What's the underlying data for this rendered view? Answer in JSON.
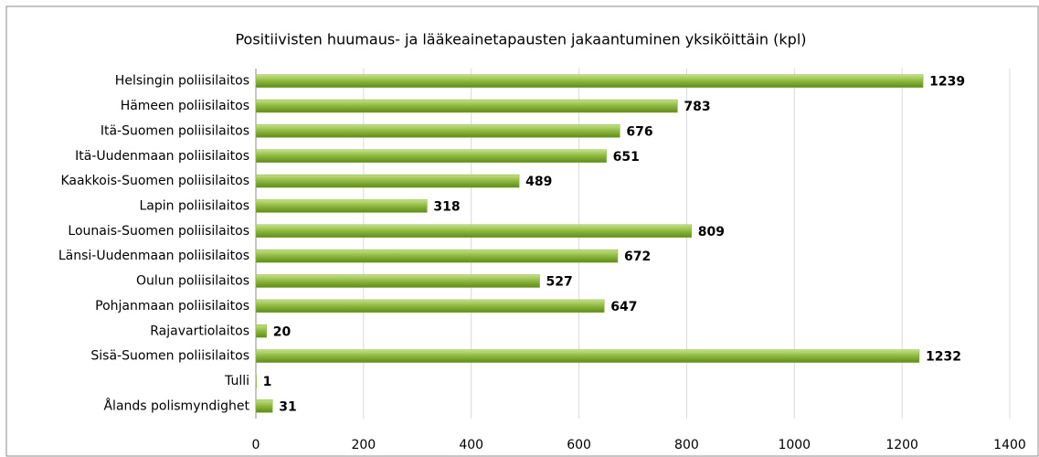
{
  "chart_data": {
    "type": "barh",
    "title": "Positiivisten huumaus- ja lääkeainetapausten jakaantuminen yksiköittäin (kpl)",
    "categories": [
      "Helsingin poliisilaitos",
      "Hämeen poliisilaitos",
      "Itä-Suomen poliisilaitos",
      "Itä-Uudenmaan poliisilaitos",
      "Kaakkois-Suomen poliisilaitos",
      "Lapin poliisilaitos",
      "Lounais-Suomen poliisilaitos",
      "Länsi-Uudenmaan poliisilaitos",
      "Oulun poliisilaitos",
      "Pohjanmaan poliisilaitos",
      "Rajavartiolaitos",
      "Sisä-Suomen poliisilaitos",
      "Tulli",
      "Ålands polismyndighet"
    ],
    "values": [
      1239,
      783,
      676,
      651,
      489,
      318,
      809,
      672,
      527,
      647,
      20,
      1232,
      1,
      31
    ],
    "color": "#8cb83c",
    "xlim": [
      0,
      1400
    ],
    "xticks": [
      0,
      200,
      400,
      600,
      800,
      1000,
      1200,
      1400
    ],
    "grid": true
  }
}
